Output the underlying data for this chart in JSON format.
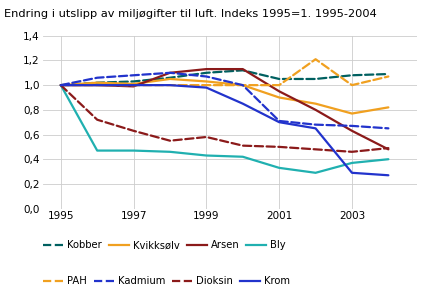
{
  "title": "Endring i utslipp av miljøgifter til luft. Indeks 1995=1. 1995-2004",
  "years": [
    1995,
    1996,
    1997,
    1998,
    1999,
    2000,
    2001,
    2002,
    2003,
    2004
  ],
  "series": {
    "Kobber": {
      "values": [
        1.0,
        1.02,
        1.03,
        1.06,
        1.1,
        1.12,
        1.05,
        1.05,
        1.08,
        1.09
      ],
      "color": "#006060",
      "dashed": true,
      "lw": 1.6
    },
    "Kvikksølv": {
      "values": [
        1.0,
        1.02,
        1.01,
        1.05,
        1.03,
        1.0,
        0.9,
        0.85,
        0.77,
        0.82
      ],
      "color": "#f0a020",
      "dashed": false,
      "lw": 1.6
    },
    "Arsen": {
      "values": [
        1.0,
        1.0,
        0.99,
        1.1,
        1.13,
        1.13,
        0.95,
        0.8,
        0.63,
        0.48
      ],
      "color": "#8b1a1a",
      "dashed": false,
      "lw": 1.6
    },
    "Bly": {
      "values": [
        1.0,
        0.47,
        0.47,
        0.46,
        0.43,
        0.42,
        0.33,
        0.29,
        0.37,
        0.4
      ],
      "color": "#20b0b0",
      "dashed": false,
      "lw": 1.6
    },
    "PAH": {
      "values": [
        1.0,
        1.0,
        1.0,
        1.0,
        1.0,
        1.0,
        1.0,
        1.21,
        1.0,
        1.07
      ],
      "color": "#f0a020",
      "dashed": true,
      "lw": 1.6
    },
    "Kadmium": {
      "values": [
        1.0,
        1.06,
        1.08,
        1.1,
        1.07,
        1.0,
        0.71,
        0.68,
        0.67,
        0.65
      ],
      "color": "#2233cc",
      "dashed": true,
      "lw": 1.6
    },
    "Dioksin": {
      "values": [
        1.0,
        0.72,
        0.63,
        0.55,
        0.58,
        0.51,
        0.5,
        0.48,
        0.46,
        0.49
      ],
      "color": "#8b1a1a",
      "dashed": true,
      "lw": 1.6
    },
    "Krom": {
      "values": [
        1.0,
        1.0,
        1.0,
        1.0,
        0.98,
        0.85,
        0.7,
        0.65,
        0.29,
        0.27
      ],
      "color": "#2233cc",
      "dashed": false,
      "lw": 1.6
    }
  },
  "ylim": [
    0.0,
    1.4
  ],
  "yticks": [
    0.0,
    0.2,
    0.4,
    0.6,
    0.8,
    1.0,
    1.2,
    1.4
  ],
  "xticks": [
    1995,
    1997,
    1999,
    2001,
    2003
  ],
  "xlim": [
    1994.5,
    2004.8
  ],
  "grid_color": "#cccccc",
  "legend_row1": [
    {
      "label": "Kobber",
      "color": "#006060",
      "dashed": true
    },
    {
      "label": "Kvikksølv",
      "color": "#f0a020",
      "dashed": false
    },
    {
      "label": "Arsen",
      "color": "#8b1a1a",
      "dashed": false
    },
    {
      "label": "Bly",
      "color": "#20b0b0",
      "dashed": false
    }
  ],
  "legend_row2": [
    {
      "label": "PAH",
      "color": "#f0a020",
      "dashed": true
    },
    {
      "label": "Kadmium",
      "color": "#2233cc",
      "dashed": true
    },
    {
      "label": "Dioksin",
      "color": "#8b1a1a",
      "dashed": true
    },
    {
      "label": "Krom",
      "color": "#2233cc",
      "dashed": false
    }
  ]
}
